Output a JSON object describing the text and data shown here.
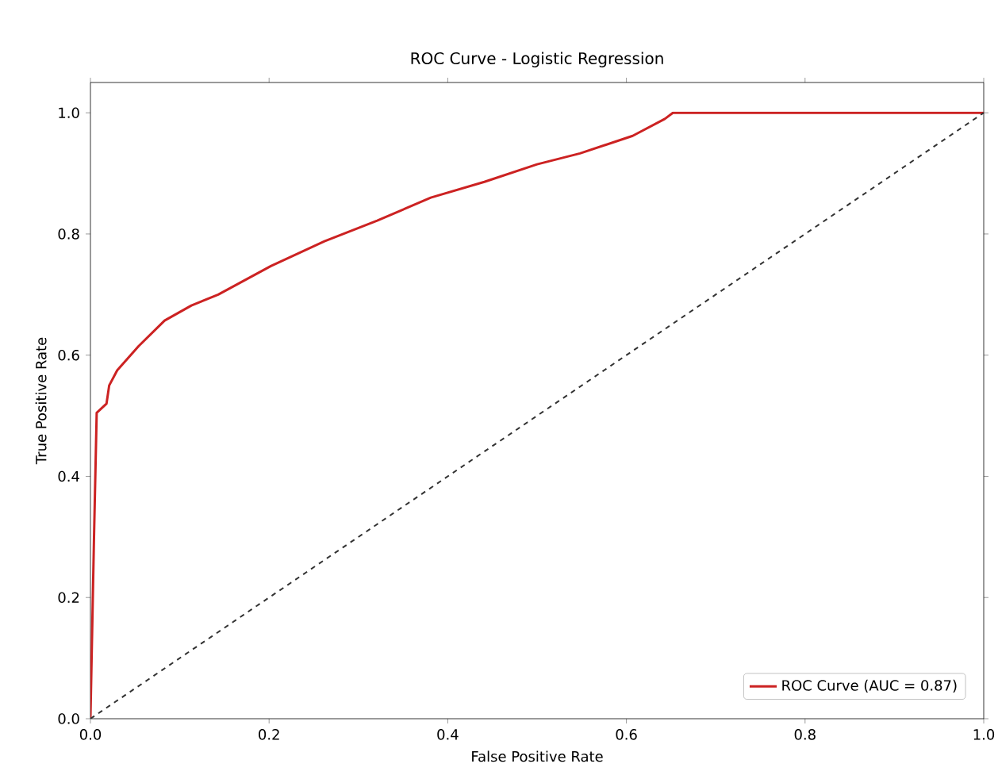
{
  "chart_data": {
    "type": "line",
    "title": "ROC Curve - Logistic Regression",
    "xlabel": "False Positive Rate",
    "ylabel": "True Positive Rate",
    "xlim": [
      0,
      1
    ],
    "ylim": [
      0,
      1.05
    ],
    "xticks": [
      {
        "value": 0,
        "label": "0.0"
      },
      {
        "value": 0.2,
        "label": "0.2"
      },
      {
        "value": 0.4,
        "label": "0.4"
      },
      {
        "value": 0.6,
        "label": "0.6"
      },
      {
        "value": 0.8,
        "label": "0.8"
      },
      {
        "value": 1,
        "label": "1.0"
      }
    ],
    "yticks": [
      {
        "value": 0,
        "label": "0.0"
      },
      {
        "value": 0.2,
        "label": "0.2"
      },
      {
        "value": 0.4,
        "label": "0.4"
      },
      {
        "value": 0.6,
        "label": "0.6"
      },
      {
        "value": 0.8,
        "label": "0.8"
      },
      {
        "value": 1,
        "label": "1.0"
      }
    ],
    "legend": "bottom right",
    "grid": false,
    "series": [
      {
        "name": "ROC Curve (AUC = 0.87)",
        "color": "#cc2222",
        "line_style": "solid",
        "x": [
          0,
          0.004,
          0.007,
          0.018,
          0.021,
          0.03,
          0.054,
          0.083,
          0.113,
          0.143,
          0.202,
          0.262,
          0.321,
          0.381,
          0.441,
          0.5,
          0.548,
          0.607,
          0.643,
          0.652,
          1
        ],
        "values": [
          0,
          0.3,
          0.505,
          0.52,
          0.55,
          0.575,
          0.615,
          0.657,
          0.682,
          0.7,
          0.747,
          0.788,
          0.822,
          0.86,
          0.886,
          0.915,
          0.933,
          0.962,
          0.99,
          1,
          1
        ]
      },
      {
        "color": "#333333",
        "line_style": "dashed",
        "x": [
          0,
          1
        ],
        "values": [
          0,
          1
        ]
      }
    ]
  }
}
